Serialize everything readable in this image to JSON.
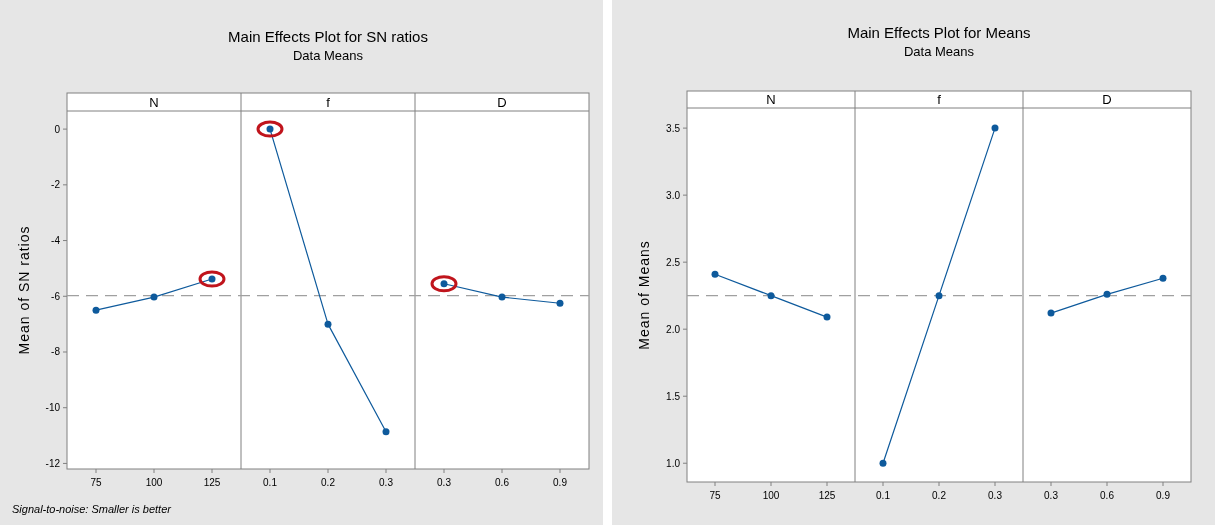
{
  "chart_data": [
    {
      "type": "line",
      "title": "Main Effects Plot for SN ratios",
      "subtitle": "Data Means",
      "ylabel": "Mean of SN ratios",
      "annotations": [
        "Signal-to-noise: Smaller is better",
        "N",
        "f",
        "D"
      ],
      "categories": [
        "75",
        "100",
        "125",
        "0.1",
        "0.2",
        "0.3",
        "0.3",
        "0.6",
        "0.9"
      ],
      "series": [
        {
          "color": "#0e5a9c",
          "values": [
            -6.5,
            -6.03,
            -5.38,
            null,
            null,
            null,
            null,
            null,
            null
          ]
        },
        {
          "color": "#0e5a9c",
          "values": [
            null,
            null,
            null,
            0.0,
            -7.0,
            -10.86,
            null,
            null,
            null
          ]
        },
        {
          "color": "#0e5a9c",
          "values": [
            null,
            null,
            null,
            null,
            null,
            null,
            -5.55,
            -6.03,
            -6.25
          ]
        }
      ],
      "marker": "circle",
      "ylim": [
        -12.2,
        0.65
      ],
      "yticks": [
        0,
        -2,
        -4,
        -6,
        -8,
        -10,
        -12
      ],
      "ref_lines": [
        {
          "axis": "y",
          "value": -5.98,
          "color": "#a0a0a0",
          "line_style": "dashed"
        }
      ]
    },
    {
      "type": "line",
      "title": "Main Effects Plot for Means",
      "subtitle": "Data Means",
      "ylabel": "Mean of Means",
      "annotations": [
        "N",
        "f",
        "D"
      ],
      "categories": [
        "75",
        "100",
        "125",
        "0.1",
        "0.2",
        "0.3",
        "0.3",
        "0.6",
        "0.9"
      ],
      "series": [
        {
          "color": "#0e5a9c",
          "values": [
            2.41,
            2.25,
            2.09,
            null,
            null,
            null,
            null,
            null,
            null
          ]
        },
        {
          "color": "#0e5a9c",
          "values": [
            null,
            null,
            null,
            1.0,
            2.25,
            3.5,
            null,
            null,
            null
          ]
        },
        {
          "color": "#0e5a9c",
          "values": [
            null,
            null,
            null,
            null,
            null,
            null,
            2.12,
            2.26,
            2.38
          ]
        }
      ],
      "marker": "circle",
      "ylim": [
        0.86,
        3.65
      ],
      "yticks": [
        {
          "value": 1.0,
          "label": "1.0"
        },
        1.5,
        {
          "value": 2.0,
          "label": "2.0"
        },
        2.5,
        {
          "value": 3.0,
          "label": "3.0"
        },
        3.5
      ],
      "ref_lines": [
        {
          "axis": "y",
          "value": 2.25,
          "color": "#a0a0a0",
          "line_style": "dashed"
        }
      ]
    }
  ]
}
